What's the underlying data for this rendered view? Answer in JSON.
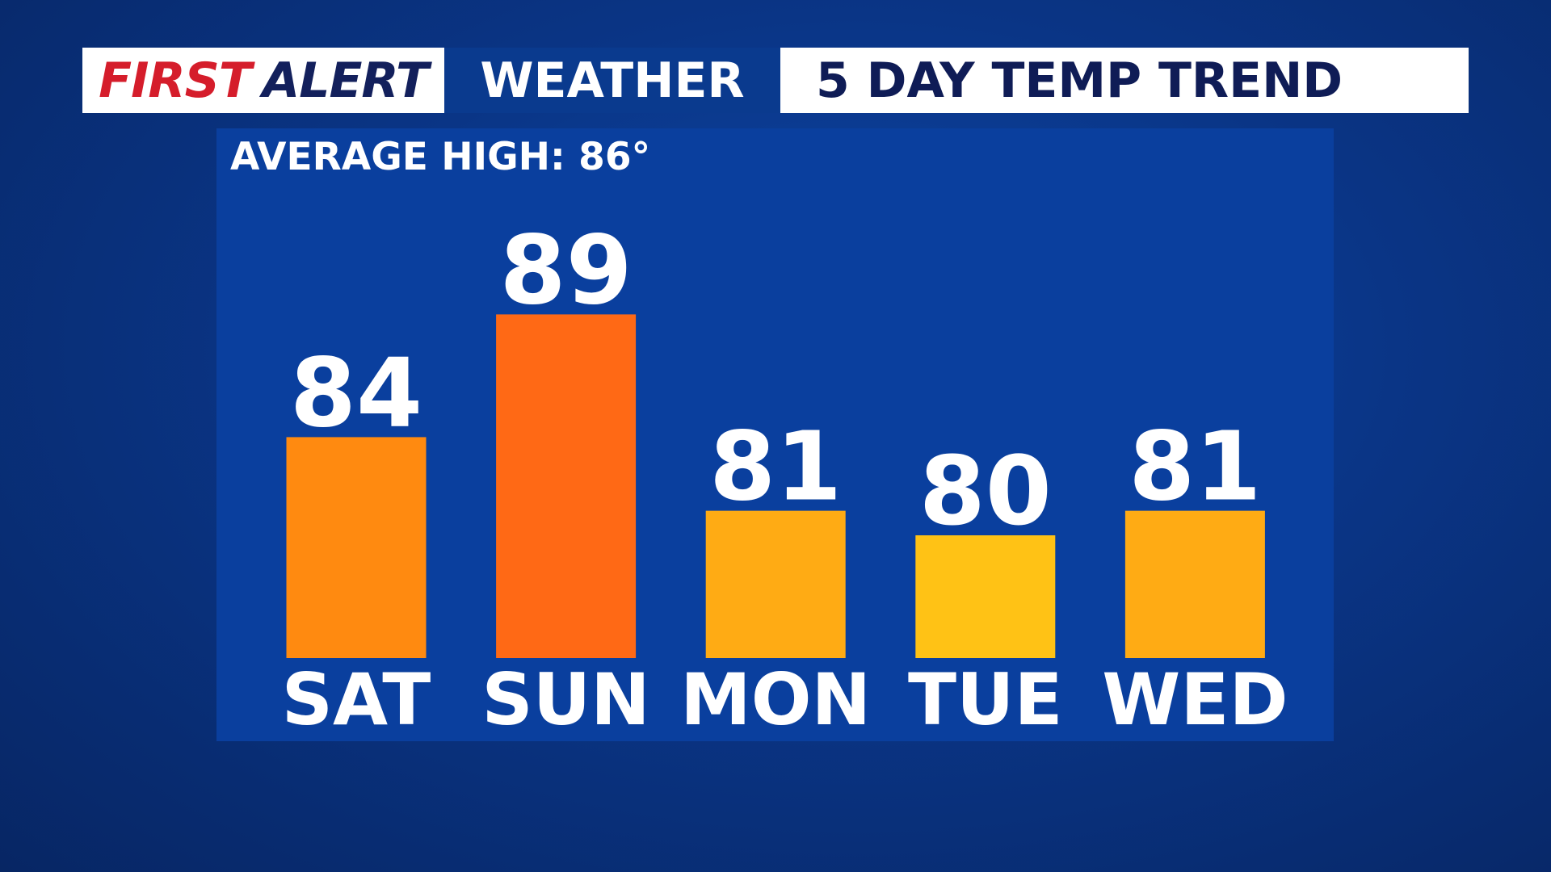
{
  "header": {
    "brand_first": "FIRST",
    "brand_second": "ALERT",
    "section": "WEATHER"
  },
  "chart_data": {
    "type": "bar",
    "title": "5 DAY TEMP TREND",
    "subtitle": "AVERAGE HIGH: 86°",
    "categories": [
      "SAT",
      "SUN",
      "MON",
      "TUE",
      "WED"
    ],
    "values": [
      84,
      89,
      81,
      80,
      81
    ],
    "colors": [
      "#ff8a10",
      "#ff6915",
      "#ffab14",
      "#ffc215",
      "#ffab14"
    ],
    "ylim": [
      75,
      90
    ]
  }
}
